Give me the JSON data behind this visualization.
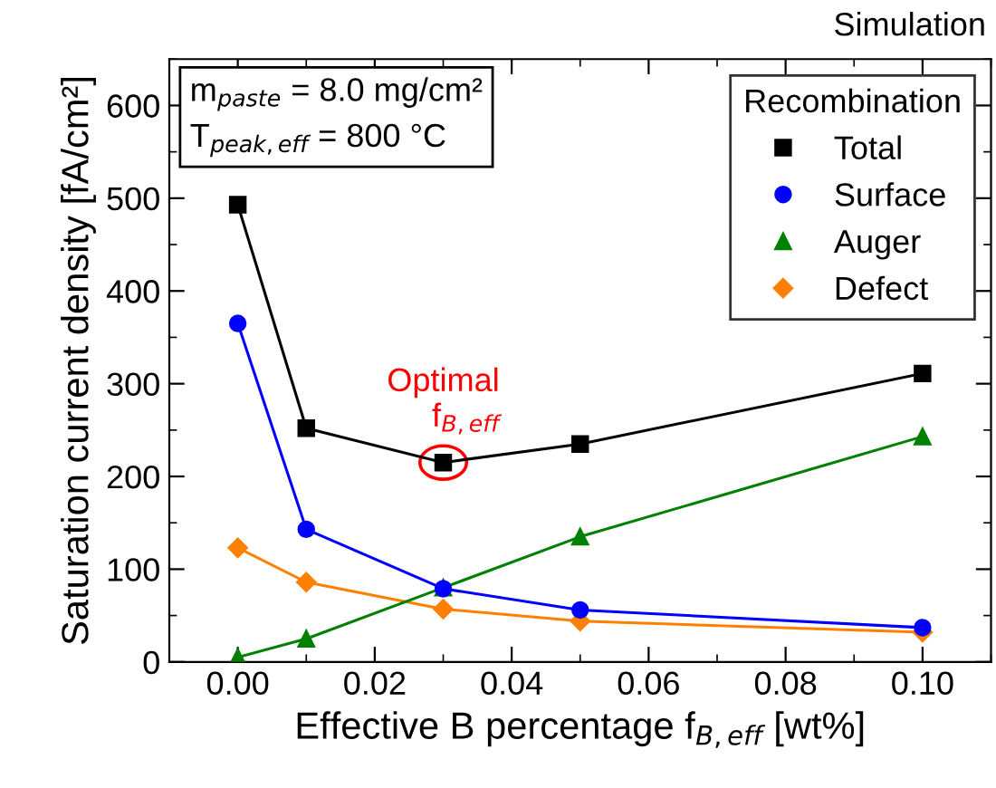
{
  "chart_data": {
    "type": "line",
    "xlabel": "Effective B percentage f$_{B,eff}$ [wt%]",
    "ylabel": "Saturation current density [fA/cm²]",
    "legend_title": "Recombination",
    "legend": "top right",
    "grid": false,
    "line_style": "solid",
    "x": [
      0.0,
      0.01,
      0.03,
      0.05,
      0.1
    ],
    "xlim": [
      -0.01,
      0.11
    ],
    "xticks": [
      {
        "value": 0.0,
        "label": "0.00"
      },
      {
        "value": 0.02,
        "label": "0.02"
      },
      {
        "value": 0.04,
        "label": "0.04"
      },
      {
        "value": 0.06,
        "label": "0.06"
      },
      {
        "value": 0.08,
        "label": "0.08"
      },
      {
        "value": 0.1,
        "label": "0.10"
      }
    ],
    "ylim": [
      0,
      650
    ],
    "yticks": [
      0,
      100,
      200,
      300,
      400,
      500,
      600
    ],
    "series": [
      {
        "name": "Total",
        "color": "#000000",
        "marker": "square",
        "values": [
          493,
          252,
          215,
          235,
          311
        ]
      },
      {
        "name": "Surface",
        "color": "#0000ff",
        "marker": "circle",
        "values": [
          365,
          143,
          79,
          56,
          37
        ]
      },
      {
        "name": "Auger",
        "color": "#008000",
        "marker": "triangle",
        "values": [
          5,
          25,
          80,
          135,
          243
        ]
      },
      {
        "name": "Defect",
        "color": "#ff8000",
        "marker": "diamond",
        "values": [
          123,
          86,
          57,
          44,
          32
        ]
      }
    ],
    "annotations": [
      "Simulation",
      "m$_{paste}$ = 8.0 mg/cm²\nT$_{peak,eff}$ = 800 °C",
      {
        "text": "Optimal\n     f$_{B,eff}$",
        "x": 0.03,
        "y": 215
      }
    ]
  }
}
